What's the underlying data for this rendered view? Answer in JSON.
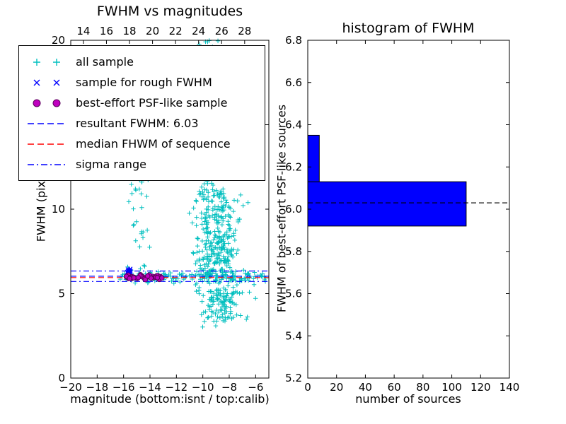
{
  "chart_data": [
    {
      "type": "scatter",
      "title": "FWHM vs magnitudes",
      "xlabel": "magnitude (bottom:isnt / top:calib)",
      "ylabel": "FWHM (pix)",
      "axes": {
        "x": {
          "min": -20,
          "max": -5,
          "ticks": [
            -20,
            -18,
            -16,
            -14,
            -12,
            -10,
            -8,
            -6
          ]
        },
        "x_top": {
          "min": 12.9,
          "max": 30.1,
          "ticks": [
            14,
            16,
            18,
            20,
            22,
            24,
            26,
            28
          ]
        },
        "y": {
          "min": 0,
          "max": 20,
          "ticks": [
            0,
            5,
            10,
            15,
            20
          ],
          "tick_decimals": 0
        }
      },
      "series": [
        {
          "name": "all sample",
          "marker": "plus",
          "color": "#00bfbf",
          "clusters": [
            {
              "n": 420,
              "mag": {
                "dist": "normal",
                "mean": -8.9,
                "sd": 0.75
              },
              "fwhm": {
                "dist": "normal",
                "mean": 7.6,
                "sd": 2.4
              },
              "fwhm_clip": [
                3.0,
                20
              ]
            },
            {
              "n": 110,
              "mag": {
                "dist": "normal",
                "mean": -9.5,
                "sd": 0.6
              },
              "fwhm": {
                "dist": "uniform",
                "min": 10,
                "max": 20
              }
            },
            {
              "n": 140,
              "mag": {
                "dist": "uniform",
                "min": -16.3,
                "max": -5.2
              },
              "fwhm": {
                "dist": "normal",
                "mean": 6.0,
                "sd": 0.18
              }
            },
            {
              "n": 45,
              "mag": {
                "dist": "normal",
                "mean": -14.7,
                "sd": 0.55
              },
              "fwhm": {
                "dist": "uniform",
                "min": 6.3,
                "max": 13.5
              }
            },
            {
              "n": 55,
              "mag": {
                "dist": "normal",
                "mean": -8.4,
                "sd": 0.6
              },
              "fwhm": {
                "dist": "uniform",
                "min": 3.3,
                "max": 5.2
              }
            }
          ]
        },
        {
          "name": "sample for rough FWHM",
          "marker": "x",
          "color": "#0000ff",
          "clusters": [
            {
              "n": 12,
              "mag": {
                "dist": "normal",
                "mean": -15.55,
                "sd": 0.12
              },
              "fwhm": {
                "dist": "normal",
                "mean": 6.3,
                "sd": 0.1
              }
            }
          ]
        },
        {
          "name": "best-effort PSF-like sample",
          "marker": "circle",
          "color": "#bf00bf",
          "edge": "#5a005a",
          "clusters": [
            {
              "n": 48,
              "mag": {
                "dist": "uniform",
                "min": -15.8,
                "max": -13.1
              },
              "fwhm": {
                "dist": "normal",
                "mean": 5.97,
                "sd": 0.07
              }
            }
          ]
        }
      ],
      "hlines": [
        {
          "label": "resultant FWHM: 6.03",
          "y": 6.03,
          "color": "#0000ff",
          "style": "dashed"
        },
        {
          "label": "median FHWM of sequence",
          "y": 5.95,
          "color": "#ff0000",
          "style": "dashed"
        },
        {
          "label": "sigma range",
          "y": [
            5.72,
            6.34
          ],
          "color": "#0000ff",
          "style": "dashdot"
        }
      ],
      "legend": {
        "entries": [
          {
            "label": "all sample",
            "marker": "plus2",
            "color": "#00bfbf"
          },
          {
            "label": "sample for rough FWHM",
            "marker": "x2",
            "color": "#0000ff"
          },
          {
            "label": "best-effort PSF-like sample",
            "marker": "circle2",
            "color": "#bf00bf",
            "edge": "#5a005a"
          },
          {
            "label": "resultant FWHM: 6.03",
            "marker": "dashed",
            "color": "#0000ff"
          },
          {
            "label": "median FHWM of sequence",
            "marker": "dashed",
            "color": "#ff0000"
          },
          {
            "label": "sigma range",
            "marker": "dashdot",
            "color": "#0000ff"
          }
        ]
      }
    },
    {
      "type": "barh",
      "title": "histogram of FWHM",
      "xlabel": "number of sources",
      "ylabel": "FWHM of best-effort PSF-like sources",
      "axes": {
        "x": {
          "min": 0,
          "max": 140,
          "ticks": [
            0,
            20,
            40,
            60,
            80,
            100,
            120,
            140
          ]
        },
        "y": {
          "min": 5.2,
          "max": 6.8,
          "ticks": [
            5.2,
            5.4,
            5.6,
            5.8,
            6.0,
            6.2,
            6.4,
            6.6,
            6.8
          ],
          "tick_decimals": 1
        }
      },
      "bars": [
        {
          "from": 5.92,
          "to": 6.13,
          "count": 110
        },
        {
          "from": 6.13,
          "to": 6.35,
          "count": 8
        }
      ],
      "bar_color": "#0000ff",
      "bar_edge": "#000000",
      "median_line": {
        "y": 6.03,
        "color": "#000000",
        "style": "dashed"
      }
    }
  ]
}
